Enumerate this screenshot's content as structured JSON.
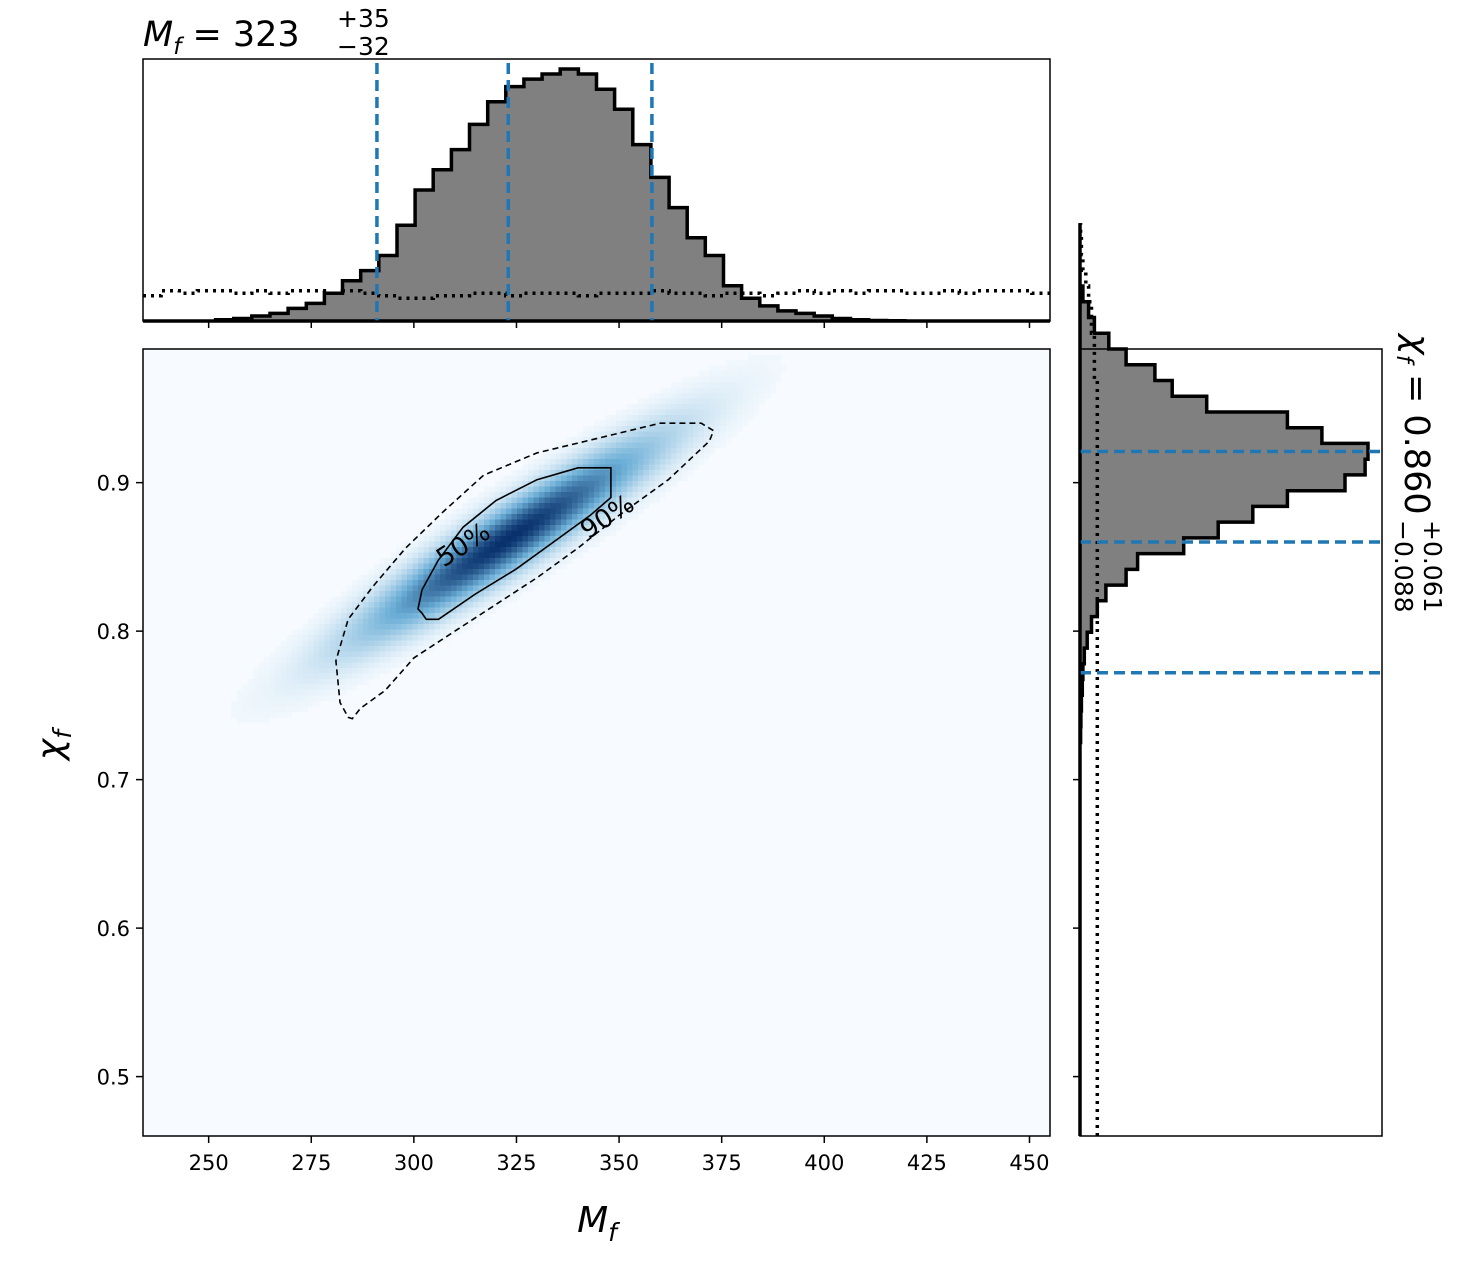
{
  "chart_data": {
    "type": "corner",
    "title_top": {
      "var": "M",
      "sub": "f",
      "eq": " = 323",
      "sup": "+35",
      "subscr": "−32"
    },
    "title_right": {
      "var": "χ",
      "sub": "f",
      "eq": " = 0.860",
      "sup": "+0.061",
      "subscr": "−0.088"
    },
    "xlabel": {
      "var": "M",
      "sub": "f"
    },
    "ylabel": {
      "var": "χ",
      "sub": "f"
    },
    "xlim": [
      234,
      455
    ],
    "ylim": [
      0.46,
      0.99
    ],
    "xticks": [
      "250",
      "275",
      "300",
      "325",
      "350",
      "375",
      "400",
      "425",
      "450"
    ],
    "xtick_values": [
      250,
      275,
      300,
      325,
      350,
      375,
      400,
      425,
      450
    ],
    "yticks": [
      "0.5",
      "0.6",
      "0.7",
      "0.8",
      "0.9"
    ],
    "ytick_values": [
      0.5,
      0.6,
      0.7,
      0.8,
      0.9
    ],
    "mass_median": 323,
    "mass_interval": [
      291,
      358
    ],
    "spin_median": 0.86,
    "spin_interval": [
      0.772,
      0.921
    ],
    "contour_labels": [
      "50%",
      "90%"
    ],
    "mass_hist": {
      "bin_start": 234,
      "bin_width": 4.42,
      "density": [
        0,
        0,
        0,
        0,
        0.005,
        0.01,
        0.02,
        0.03,
        0.05,
        0.07,
        0.11,
        0.16,
        0.2,
        0.26,
        0.38,
        0.52,
        0.6,
        0.68,
        0.78,
        0.87,
        0.93,
        0.96,
        0.98,
        1.0,
        0.98,
        0.92,
        0.84,
        0.7,
        0.57,
        0.45,
        0.33,
        0.26,
        0.14,
        0.09,
        0.06,
        0.04,
        0.03,
        0.02,
        0.01,
        0.005,
        0.002,
        0.001,
        0,
        0,
        0,
        0,
        0,
        0,
        0,
        0
      ],
      "prior": [
        0.1,
        0.12,
        0.11,
        0.12,
        0.12,
        0.11,
        0.12,
        0.11,
        0.12,
        0.12,
        0.11,
        0.12,
        0.11,
        0.1,
        0.09,
        0.09,
        0.1,
        0.1,
        0.11,
        0.11,
        0.1,
        0.11,
        0.11,
        0.11,
        0.1,
        0.11,
        0.11,
        0.11,
        0.12,
        0.11,
        0.11,
        0.1,
        0.11,
        0.11,
        0.1,
        0.11,
        0.12,
        0.11,
        0.12,
        0.11,
        0.12,
        0.12,
        0.11,
        0.11,
        0.12,
        0.11,
        0.12,
        0.12,
        0.12,
        0.11
      ]
    },
    "spin_hist": {
      "bin_start": 0.46,
      "bin_width": 0.0106,
      "density": [
        0,
        0,
        0,
        0,
        0,
        0,
        0,
        0,
        0,
        0,
        0,
        0,
        0,
        0,
        0,
        0,
        0,
        0,
        0,
        0,
        0,
        0,
        0,
        0,
        0,
        0.002,
        0.003,
        0.005,
        0.008,
        0.01,
        0.015,
        0.025,
        0.04,
        0.06,
        0.09,
        0.16,
        0.2,
        0.36,
        0.48,
        0.6,
        0.72,
        0.92,
        0.99,
        1.0,
        0.84,
        0.72,
        0.44,
        0.32,
        0.26,
        0.16,
        0.1,
        0.05,
        0.03,
        0.01,
        0,
        0,
        0,
        0
      ],
      "prior": [
        0.06,
        0.06,
        0.06,
        0.06,
        0.06,
        0.06,
        0.06,
        0.06,
        0.06,
        0.06,
        0.06,
        0.06,
        0.06,
        0.06,
        0.06,
        0.06,
        0.06,
        0.06,
        0.06,
        0.06,
        0.06,
        0.06,
        0.06,
        0.06,
        0.06,
        0.06,
        0.06,
        0.06,
        0.06,
        0.06,
        0.06,
        0.06,
        0.06,
        0.06,
        0.06,
        0.06,
        0.06,
        0.06,
        0.06,
        0.06,
        0.06,
        0.06,
        0.06,
        0.06,
        0.06,
        0.06,
        0.06,
        0.06,
        0.05,
        0.05,
        0.05,
        0.04,
        0.04,
        0.03,
        0.02,
        0.01,
        0.005,
        0.002
      ]
    },
    "joint_density": {
      "type": "heatmap",
      "center": [
        323,
        0.862
      ],
      "sigma_along": 0.78,
      "sigma_across": 0.065,
      "slope_deg": 33,
      "colormap": "Blues"
    },
    "contour_50": [
      [
        302,
        0.812
      ],
      [
        303,
        0.808
      ],
      [
        306,
        0.808
      ],
      [
        315,
        0.825
      ],
      [
        325,
        0.842
      ],
      [
        335,
        0.862
      ],
      [
        343,
        0.878
      ],
      [
        348,
        0.89
      ],
      [
        348,
        0.91
      ],
      [
        340,
        0.91
      ],
      [
        330,
        0.902
      ],
      [
        320,
        0.888
      ],
      [
        312,
        0.87
      ],
      [
        306,
        0.848
      ],
      [
        302,
        0.828
      ],
      [
        301,
        0.815
      ]
    ],
    "contour_90": [
      [
        284,
        0.742
      ],
      [
        285,
        0.741
      ],
      [
        287,
        0.748
      ],
      [
        293,
        0.76
      ],
      [
        300,
        0.782
      ],
      [
        310,
        0.8
      ],
      [
        320,
        0.818
      ],
      [
        330,
        0.836
      ],
      [
        340,
        0.856
      ],
      [
        350,
        0.878
      ],
      [
        362,
        0.902
      ],
      [
        372,
        0.928
      ],
      [
        373,
        0.935
      ],
      [
        370,
        0.94
      ],
      [
        360,
        0.94
      ],
      [
        345,
        0.93
      ],
      [
        330,
        0.92
      ],
      [
        317,
        0.905
      ],
      [
        307,
        0.88
      ],
      [
        298,
        0.856
      ],
      [
        290,
        0.83
      ],
      [
        284,
        0.808
      ],
      [
        281,
        0.78
      ],
      [
        282,
        0.752
      ],
      [
        284,
        0.742
      ]
    ]
  },
  "colors": {
    "hist_fill": "#808080",
    "median_line": "#1f77b4",
    "cmap_low": "#f7fbff",
    "cmap_high": "#08306b"
  }
}
